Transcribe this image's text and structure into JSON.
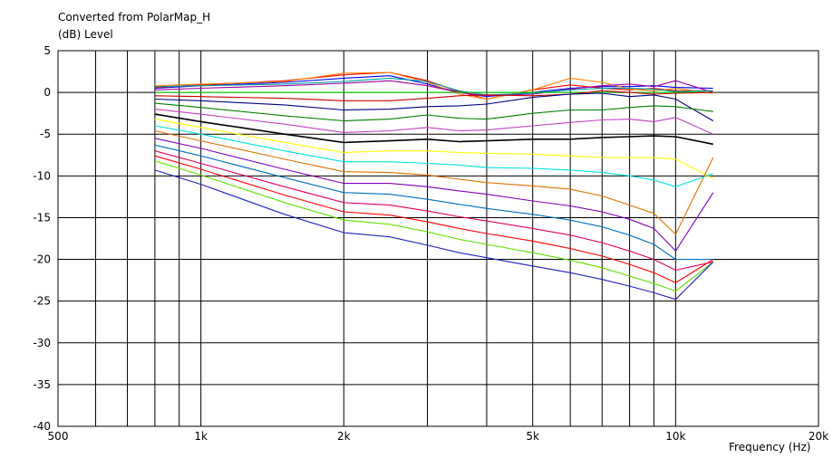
{
  "chart_data": {
    "type": "line",
    "title": "Converted from PolarMap_H",
    "ylabel": "(dB)  Level",
    "xlabel": "Frequency  (Hz)",
    "x_scale": "log",
    "xlim": [
      500,
      20000
    ],
    "ylim": [
      -40,
      5
    ],
    "grid": true,
    "legend": "none",
    "x_ticks": [
      {
        "value": 500,
        "label": "500"
      },
      {
        "value": 1000,
        "label": "1k"
      },
      {
        "value": 2000,
        "label": "2k"
      },
      {
        "value": 5000,
        "label": "5k"
      },
      {
        "value": 10000,
        "label": "10k"
      },
      {
        "value": 20000,
        "label": "20k"
      }
    ],
    "y_ticks": [
      5,
      0,
      -5,
      -10,
      -15,
      -20,
      -25,
      -30,
      -35,
      -40
    ],
    "x": [
      800,
      1000,
      1500,
      2000,
      2500,
      3000,
      3500,
      4000,
      5000,
      6000,
      7000,
      8000,
      9000,
      10000,
      12000
    ],
    "series": [
      {
        "color": "#0000ff",
        "values": [
          0.5,
          0.8,
          1.2,
          1.7,
          2.0,
          1.0,
          0.0,
          -0.5,
          0.0,
          0.5,
          0.7,
          0.7,
          0.8,
          0.6,
          0.5
        ]
      },
      {
        "color": "#ff0000",
        "values": [
          0.6,
          0.9,
          1.4,
          2.1,
          2.4,
          1.4,
          0.1,
          -0.8,
          0.3,
          0.9,
          0.5,
          0.3,
          0.5,
          0.2,
          0.2
        ]
      },
      {
        "color": "#ff8000",
        "values": [
          0.8,
          1.0,
          1.3,
          2.3,
          2.4,
          1.2,
          -0.2,
          -0.8,
          0.3,
          1.7,
          1.2,
          0.4,
          0.2,
          0.5,
          -0.1
        ]
      },
      {
        "color": "#a000a0",
        "values": [
          0.3,
          0.5,
          0.8,
          1.1,
          1.4,
          0.8,
          0.0,
          -0.4,
          -0.2,
          0.4,
          0.8,
          1.0,
          0.7,
          1.4,
          0.0
        ]
      },
      {
        "color": "#00a0a0",
        "values": [
          0.7,
          0.8,
          1.0,
          1.3,
          1.7,
          1.3,
          0.2,
          -0.3,
          -0.1,
          0.3,
          0.5,
          0.5,
          0.4,
          0.1,
          0.2
        ]
      },
      {
        "color": "#00cc00",
        "values": [
          0.0,
          0.0,
          0.0,
          0.0,
          0.0,
          0.0,
          0.0,
          0.0,
          0.0,
          0.0,
          0.0,
          0.0,
          0.0,
          0.0,
          0.0
        ]
      },
      {
        "color": "#cc0000",
        "values": [
          -0.4,
          -0.5,
          -0.7,
          -1.0,
          -1.0,
          -0.7,
          -0.4,
          -0.3,
          -0.4,
          -0.2,
          0.2,
          0.0,
          -0.2,
          -0.1,
          0.0
        ]
      },
      {
        "color": "#000080",
        "values": [
          -0.8,
          -1.0,
          -1.5,
          -2.1,
          -2.0,
          -1.7,
          -1.6,
          -1.4,
          -0.6,
          -0.2,
          -0.1,
          -0.5,
          -0.3,
          -0.8,
          -3.4
        ]
      },
      {
        "color": "#008000",
        "values": [
          -1.3,
          -1.8,
          -2.8,
          -3.4,
          -3.2,
          -2.7,
          -3.1,
          -3.2,
          -2.5,
          -2.1,
          -2.1,
          -1.8,
          -1.6,
          -1.7,
          -2.3
        ]
      },
      {
        "color": "#c040c0",
        "values": [
          -2.0,
          -2.6,
          -3.8,
          -4.8,
          -4.6,
          -4.2,
          -4.6,
          -4.5,
          -4.0,
          -3.6,
          -3.3,
          -3.2,
          -3.5,
          -3.0,
          -5.0
        ]
      },
      {
        "color": "#000000",
        "values": [
          -2.6,
          -3.5,
          -5.0,
          -6.0,
          -5.8,
          -5.6,
          -5.9,
          -5.8,
          -5.6,
          -5.6,
          -5.4,
          -5.3,
          -5.2,
          -5.3,
          -6.2
        ]
      },
      {
        "color": "#ffff00",
        "values": [
          -3.2,
          -4.2,
          -6.0,
          -7.2,
          -7.0,
          -7.0,
          -7.2,
          -7.3,
          -7.4,
          -7.6,
          -7.8,
          -7.8,
          -7.8,
          -8.0,
          -10.3
        ]
      },
      {
        "color": "#00e0e0",
        "values": [
          -4.0,
          -5.0,
          -7.0,
          -8.3,
          -8.3,
          -8.5,
          -8.7,
          -9.0,
          -9.1,
          -9.3,
          -9.6,
          -10.0,
          -10.5,
          -11.3,
          -9.7
        ]
      },
      {
        "color": "#e07000",
        "values": [
          -4.6,
          -5.8,
          -8.0,
          -9.5,
          -9.6,
          -9.9,
          -10.4,
          -10.8,
          -11.2,
          -11.6,
          -12.4,
          -13.5,
          -14.5,
          -17.0,
          -7.8
        ]
      },
      {
        "color": "#8000c0",
        "values": [
          -5.5,
          -6.7,
          -9.2,
          -10.9,
          -10.9,
          -11.3,
          -11.8,
          -12.2,
          -13.0,
          -13.6,
          -14.3,
          -15.2,
          -16.3,
          -19.0,
          -12.0
        ]
      },
      {
        "color": "#0070c0",
        "values": [
          -6.3,
          -7.6,
          -10.2,
          -12.0,
          -12.2,
          -12.8,
          -13.4,
          -13.9,
          -14.6,
          -15.3,
          -16.1,
          -17.1,
          -18.2,
          -20.0,
          -20.0
        ]
      },
      {
        "color": "#e00060",
        "values": [
          -7.0,
          -8.5,
          -11.3,
          -13.2,
          -13.5,
          -14.2,
          -14.9,
          -15.4,
          -16.3,
          -17.1,
          -18.0,
          -19.0,
          -20.0,
          -21.3,
          -20.3
        ]
      },
      {
        "color": "#ff0000",
        "values": [
          -7.6,
          -9.2,
          -12.3,
          -14.3,
          -14.7,
          -15.5,
          -16.3,
          -16.9,
          -17.8,
          -18.7,
          -19.6,
          -20.6,
          -21.6,
          -22.8,
          -20.0
        ]
      },
      {
        "color": "#60e000",
        "values": [
          -8.2,
          -9.9,
          -13.2,
          -15.3,
          -15.8,
          -16.7,
          -17.6,
          -18.2,
          -19.2,
          -20.1,
          -21.0,
          -22.0,
          -22.9,
          -23.8,
          -20.3
        ]
      },
      {
        "color": "#2020c0",
        "values": [
          -9.3,
          -11.0,
          -14.6,
          -16.8,
          -17.3,
          -18.3,
          -19.2,
          -19.8,
          -20.8,
          -21.6,
          -22.4,
          -23.2,
          -24.0,
          -24.8,
          -20.3
        ]
      }
    ]
  }
}
